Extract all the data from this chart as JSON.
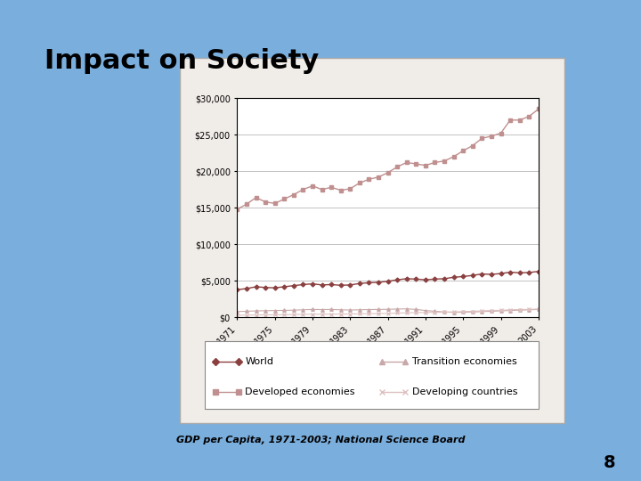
{
  "title": "Impact on Society",
  "subtitle": "GDP per Capita, 1971-2003; National Science Board",
  "slide_bg_color": "#7aaedd",
  "chart_outer_bg": "#f0ece8",
  "chart_plot_bg": "#ffffff",
  "legend_bg": "#ffffff",
  "years": [
    1971,
    1972,
    1973,
    1974,
    1975,
    1976,
    1977,
    1978,
    1979,
    1980,
    1981,
    1982,
    1983,
    1984,
    1985,
    1986,
    1987,
    1988,
    1989,
    1990,
    1991,
    1992,
    1993,
    1994,
    1995,
    1996,
    1997,
    1998,
    1999,
    2000,
    2001,
    2002,
    2003
  ],
  "world": [
    3800,
    3950,
    4200,
    4100,
    4050,
    4200,
    4350,
    4500,
    4600,
    4450,
    4500,
    4400,
    4450,
    4650,
    4750,
    4800,
    4950,
    5150,
    5300,
    5250,
    5150,
    5250,
    5300,
    5500,
    5600,
    5750,
    5950,
    5900,
    6000,
    6200,
    6100,
    6150,
    6300
  ],
  "developed": [
    14800,
    15500,
    16400,
    15800,
    15600,
    16200,
    16800,
    17500,
    18000,
    17500,
    17800,
    17400,
    17600,
    18400,
    18900,
    19200,
    19800,
    20600,
    21200,
    21000,
    20800,
    21200,
    21400,
    22000,
    22800,
    23500,
    24500,
    24800,
    25200,
    27000,
    27000,
    27500,
    28500
  ],
  "transition": [
    800,
    850,
    900,
    920,
    950,
    970,
    1000,
    1050,
    1100,
    1080,
    1100,
    1050,
    1020,
    1050,
    1080,
    1100,
    1120,
    1150,
    1180,
    1100,
    950,
    850,
    750,
    700,
    720,
    750,
    800,
    850,
    900,
    950,
    1000,
    1050,
    1100
  ],
  "developing": [
    300,
    320,
    340,
    350,
    360,
    380,
    400,
    430,
    450,
    440,
    460,
    460,
    470,
    500,
    520,
    530,
    560,
    600,
    640,
    660,
    680,
    700,
    720,
    760,
    800,
    840,
    900,
    950,
    980,
    1050,
    1080,
    1100,
    1150
  ],
  "world_color": "#8b4040",
  "developed_color": "#c09090",
  "transition_color": "#c8a8a8",
  "developing_color": "#ddc0c0",
  "ylim": [
    0,
    30000
  ],
  "yticks": [
    0,
    5000,
    10000,
    15000,
    20000,
    25000,
    30000
  ],
  "xtick_step": 4,
  "page_number": "8",
  "title_fontsize": 22,
  "subtitle_fontsize": 8,
  "tick_fontsize": 7,
  "legend_fontsize": 8
}
